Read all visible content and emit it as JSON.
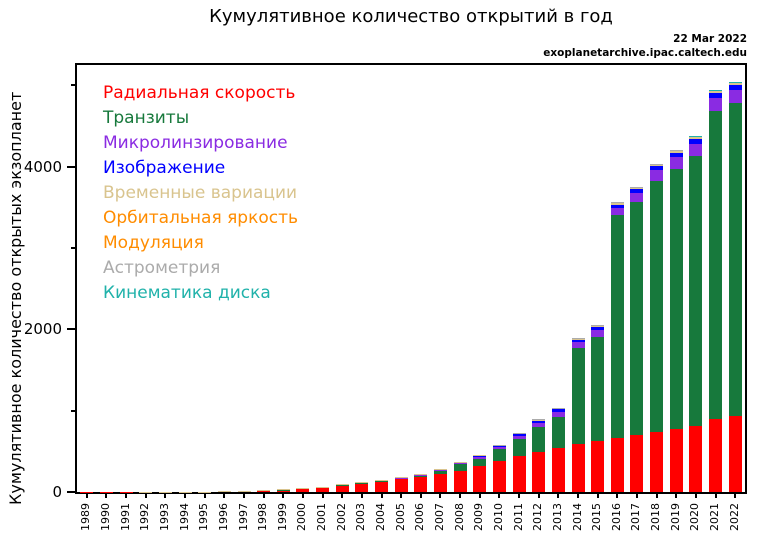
{
  "annotation": {
    "date": "22 Mar 2022",
    "source": "exoplanetarchive.ipac.caltech.edu"
  },
  "legend": [
    {
      "label": "Радиальная скорость",
      "color": "#ff0000"
    },
    {
      "label": "Транзиты",
      "color": "#17793c"
    },
    {
      "label": "Микролинзирование",
      "color": "#8a2be2"
    },
    {
      "label": "Изображение",
      "color": "#0000ff"
    },
    {
      "label": "Временные вариации",
      "color": "#d9c48e"
    },
    {
      "label": "Орбитальная яркость",
      "color": "#ff8c00"
    },
    {
      "label": "Модуляция",
      "color": "#ff8c00"
    },
    {
      "label": "Астрометрия",
      "color": "#ababab"
    },
    {
      "label": "Кинематика диска",
      "color": "#20b2aa"
    }
  ],
  "chart_data": {
    "type": "bar",
    "stacked": true,
    "title": "Кумулятивное количество открытий в год",
    "ylabel": "Кумулятивное количество открытых экзопланет",
    "xlabel": "",
    "ylim": [
      0,
      5250
    ],
    "y_major_ticks": [
      0,
      2000,
      4000
    ],
    "y_minor_ticks": [
      1000,
      3000,
      5000
    ],
    "grid": false,
    "legend_position": "upper-left-inside",
    "categories": [
      "1989",
      "1990",
      "1991",
      "1992",
      "1993",
      "1994",
      "1995",
      "1996",
      "1997",
      "1998",
      "1999",
      "2000",
      "2001",
      "2002",
      "2003",
      "2004",
      "2005",
      "2006",
      "2007",
      "2008",
      "2009",
      "2010",
      "2011",
      "2012",
      "2013",
      "2014",
      "2015",
      "2016",
      "2017",
      "2018",
      "2019",
      "2020",
      "2021",
      "2022"
    ],
    "series": [
      {
        "name": "Радиальная скорость",
        "color": "#ff0000",
        "values": [
          1,
          1,
          1,
          1,
          1,
          1,
          2,
          8,
          9,
          17,
          29,
          45,
          57,
          88,
          112,
          132,
          158,
          183,
          220,
          262,
          315,
          385,
          440,
          495,
          540,
          590,
          630,
          665,
          695,
          735,
          770,
          815,
          900,
          931
        ]
      },
      {
        "name": "Транзиты",
        "color": "#17793c",
        "values": [
          0,
          0,
          0,
          0,
          0,
          0,
          0,
          0,
          0,
          0,
          1,
          1,
          1,
          2,
          4,
          8,
          13,
          21,
          45,
          77,
          96,
          140,
          215,
          305,
          385,
          1175,
          1280,
          2735,
          2870,
          3095,
          3205,
          3320,
          3790,
          3850
        ]
      },
      {
        "name": "Микролинзирование",
        "color": "#8a2be2",
        "values": [
          0,
          0,
          0,
          0,
          0,
          0,
          0,
          0,
          0,
          0,
          0,
          0,
          0,
          0,
          0,
          3,
          6,
          9,
          11,
          15,
          18,
          25,
          36,
          48,
          60,
          74,
          84,
          96,
          114,
          130,
          143,
          150,
          158,
          162
        ]
      },
      {
        "name": "Изображение",
        "color": "#0000ff",
        "values": [
          0,
          0,
          0,
          0,
          0,
          0,
          0,
          0,
          0,
          0,
          0,
          0,
          0,
          0,
          0,
          4,
          5,
          5,
          7,
          12,
          16,
          17,
          20,
          26,
          30,
          34,
          36,
          38,
          42,
          44,
          48,
          51,
          55,
          57
        ]
      },
      {
        "name": "Временные вариации",
        "color": "#d9c48e",
        "values": [
          0,
          0,
          0,
          2,
          2,
          3,
          3,
          3,
          3,
          3,
          3,
          3,
          3,
          3,
          4,
          4,
          4,
          4,
          5,
          5,
          5,
          8,
          10,
          13,
          15,
          17,
          19,
          21,
          23,
          25,
          27,
          28,
          29,
          29
        ]
      },
      {
        "name": "Орбитальная яркость / Модуляция",
        "color": "#ff8c00",
        "values": [
          0,
          0,
          0,
          0,
          0,
          0,
          0,
          0,
          0,
          0,
          0,
          0,
          0,
          0,
          0,
          0,
          0,
          0,
          0,
          0,
          0,
          0,
          4,
          6,
          7,
          7,
          7,
          9,
          9,
          9,
          9,
          9,
          9,
          9
        ]
      },
      {
        "name": "Астрометрия",
        "color": "#ababab",
        "values": [
          0,
          0,
          0,
          0,
          0,
          0,
          0,
          0,
          0,
          0,
          0,
          0,
          0,
          0,
          0,
          0,
          0,
          0,
          0,
          0,
          0,
          1,
          1,
          1,
          1,
          1,
          1,
          1,
          1,
          1,
          1,
          1,
          2,
          2
        ]
      },
      {
        "name": "Кинематика диска",
        "color": "#20b2aa",
        "values": [
          0,
          0,
          0,
          0,
          0,
          0,
          0,
          0,
          0,
          0,
          0,
          0,
          0,
          0,
          0,
          0,
          0,
          0,
          0,
          0,
          0,
          0,
          0,
          0,
          0,
          0,
          0,
          0,
          0,
          0,
          0,
          1,
          1,
          1
        ]
      }
    ]
  }
}
